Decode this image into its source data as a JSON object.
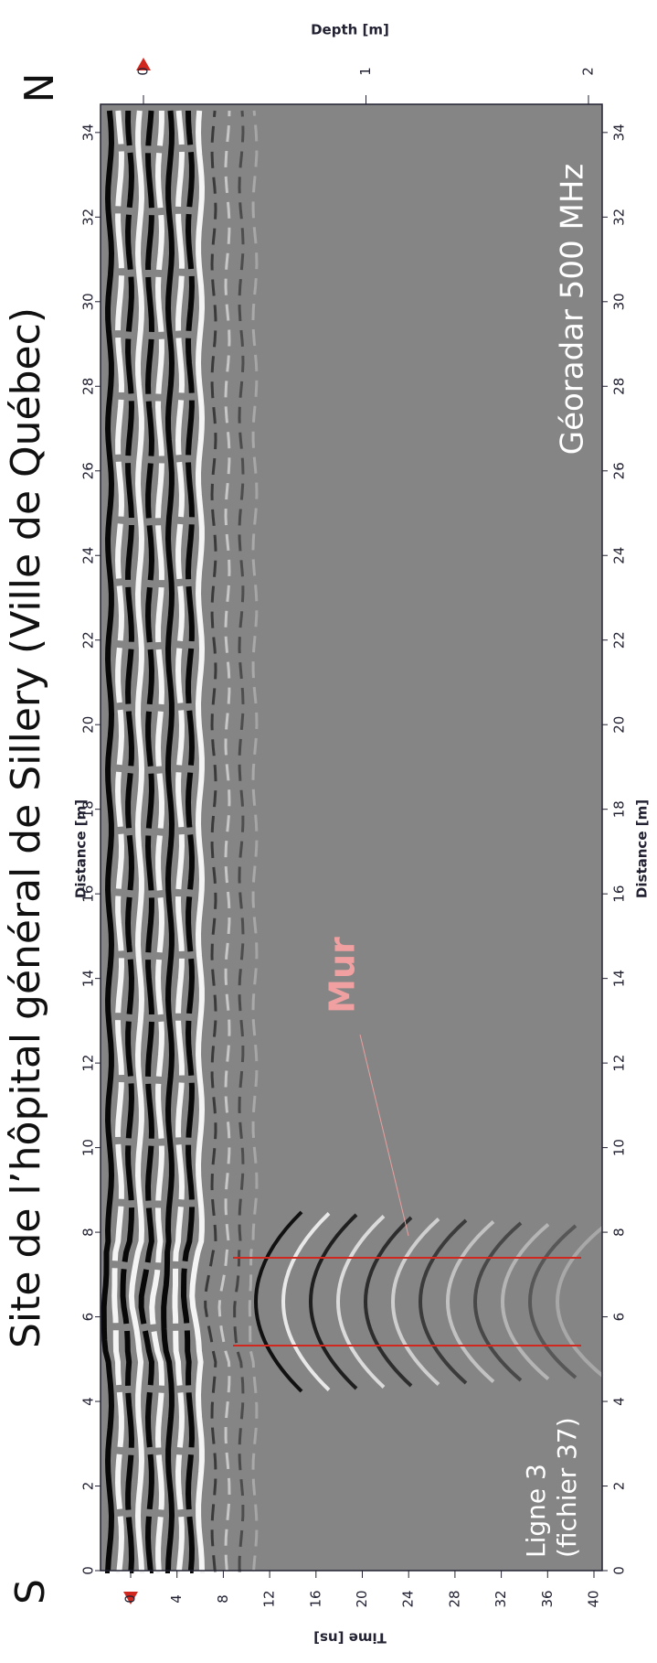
{
  "title": "Site de l’hôpital général de Sillery (Ville de Québec)",
  "labels": {
    "south": "S",
    "north": "N",
    "instrument": "Géoradar 500 MHz",
    "line": "Ligne 3",
    "file": "(fichier 37)",
    "feature": "Mur"
  },
  "distance_axis": {
    "label": "Distance [m]",
    "ticks": [
      0,
      2,
      4,
      6,
      8,
      10,
      12,
      14,
      16,
      18,
      20,
      22,
      24,
      26,
      28,
      30,
      32,
      34
    ]
  },
  "time_axis": {
    "label": "Time [ns]",
    "ticks": [
      0,
      4,
      8,
      12,
      16,
      20,
      24,
      28,
      32,
      36,
      40
    ]
  },
  "depth_axis": {
    "label": "Depth [m]",
    "ticks": [
      0,
      1,
      2
    ]
  }
}
